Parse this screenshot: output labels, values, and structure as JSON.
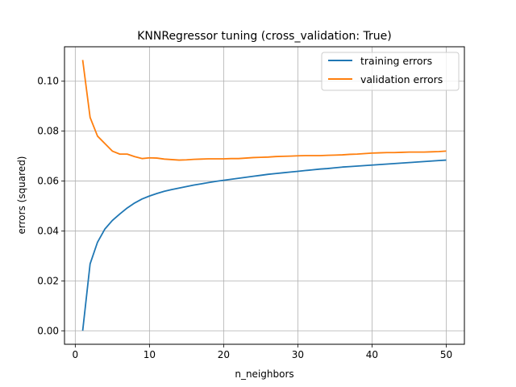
{
  "chart_data": {
    "type": "line",
    "title": "KNNRegressor tuning (cross_validation: True)",
    "xlabel": "n_neighbors",
    "ylabel": "errors (squared)",
    "xlim": [
      -1.45,
      52.45
    ],
    "ylim": [
      -0.0054,
      0.1138
    ],
    "xticks": [
      0,
      10,
      20,
      30,
      40,
      50
    ],
    "xtick_labels": [
      "0",
      "10",
      "20",
      "30",
      "40",
      "50"
    ],
    "yticks": [
      0.0,
      0.02,
      0.04,
      0.06,
      0.08,
      0.1
    ],
    "ytick_labels": [
      "0.00",
      "0.02",
      "0.04",
      "0.06",
      "0.08",
      "0.10"
    ],
    "grid": true,
    "legend_position": "top-right",
    "x": [
      1,
      2,
      3,
      4,
      5,
      6,
      7,
      8,
      9,
      10,
      11,
      12,
      13,
      14,
      15,
      16,
      17,
      18,
      19,
      20,
      21,
      22,
      23,
      24,
      25,
      26,
      27,
      28,
      29,
      30,
      31,
      32,
      33,
      34,
      35,
      36,
      37,
      38,
      39,
      40,
      41,
      42,
      43,
      44,
      45,
      46,
      47,
      48,
      49,
      50
    ],
    "series": [
      {
        "name": "training errors",
        "color": "#1f77b4",
        "values": [
          0.0,
          0.0268,
          0.0355,
          0.0408,
          0.0442,
          0.0468,
          0.0492,
          0.0512,
          0.0528,
          0.054,
          0.055,
          0.0559,
          0.0566,
          0.0572,
          0.0578,
          0.0584,
          0.0589,
          0.0594,
          0.0599,
          0.0603,
          0.0607,
          0.0611,
          0.0615,
          0.0619,
          0.0623,
          0.0627,
          0.063,
          0.0633,
          0.0636,
          0.0639,
          0.0642,
          0.0645,
          0.0648,
          0.065,
          0.0653,
          0.0656,
          0.0658,
          0.066,
          0.0662,
          0.0664,
          0.0666,
          0.0668,
          0.067,
          0.0672,
          0.0674,
          0.0676,
          0.0678,
          0.068,
          0.0682,
          0.0684
        ]
      },
      {
        "name": "validation errors",
        "color": "#ff7f0e",
        "values": [
          0.1085,
          0.0855,
          0.078,
          0.075,
          0.072,
          0.0708,
          0.0708,
          0.0698,
          0.069,
          0.0693,
          0.0692,
          0.0688,
          0.0686,
          0.0684,
          0.0685,
          0.0687,
          0.0688,
          0.0689,
          0.0689,
          0.0689,
          0.069,
          0.069,
          0.0692,
          0.0694,
          0.0695,
          0.0696,
          0.0698,
          0.0699,
          0.07,
          0.0701,
          0.0702,
          0.0702,
          0.0702,
          0.0703,
          0.0704,
          0.0705,
          0.0707,
          0.0708,
          0.071,
          0.0712,
          0.0713,
          0.0714,
          0.0714,
          0.0715,
          0.0716,
          0.0716,
          0.0716,
          0.0717,
          0.0718,
          0.072
        ]
      }
    ]
  }
}
